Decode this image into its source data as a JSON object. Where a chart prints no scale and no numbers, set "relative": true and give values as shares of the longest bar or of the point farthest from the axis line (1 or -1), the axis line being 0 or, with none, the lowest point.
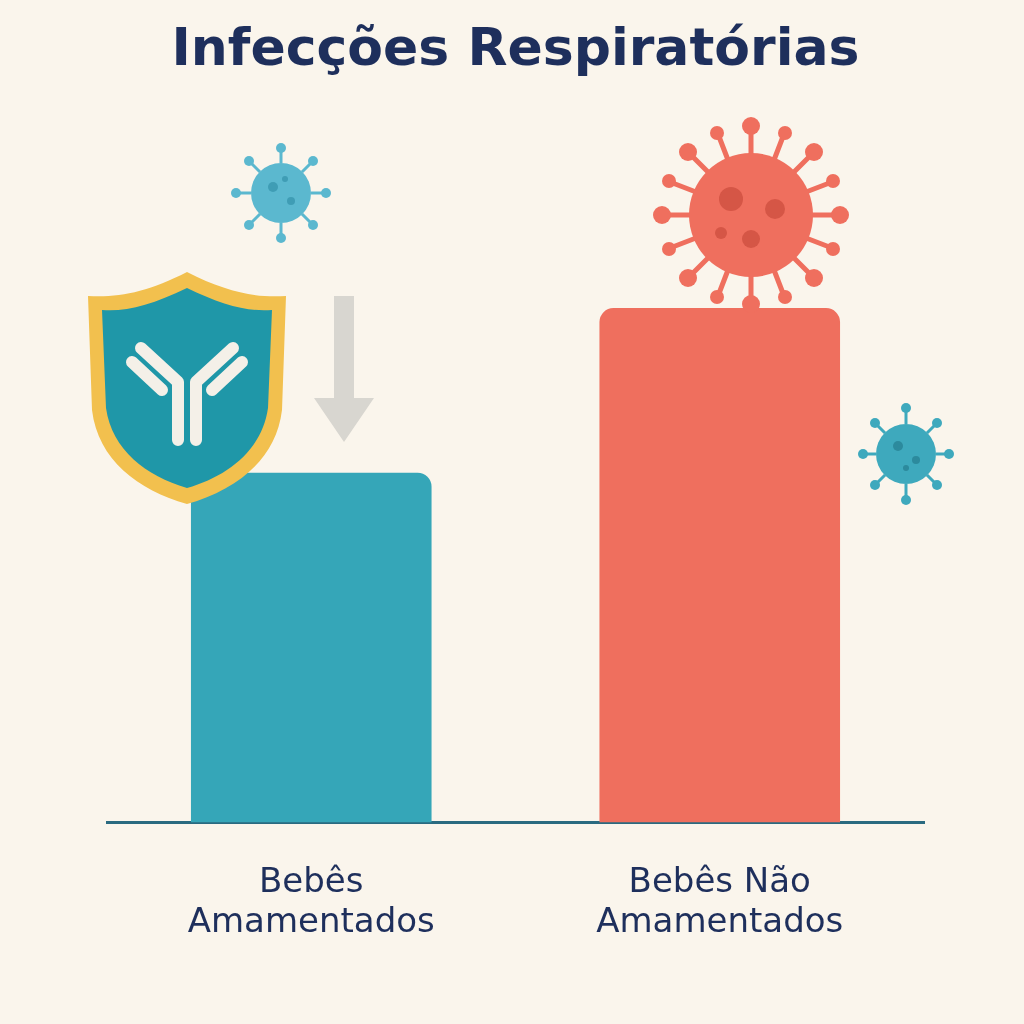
{
  "chart_data": {
    "type": "bar",
    "title": "Infecções Respiratórias",
    "relative": true,
    "categories": [
      "Bebês Amamentados",
      "Bebês Não Amamentados"
    ],
    "values": [
      0.68,
      1
    ],
    "colors": [
      "#35a6b8",
      "#ef6f5e"
    ]
  }
}
